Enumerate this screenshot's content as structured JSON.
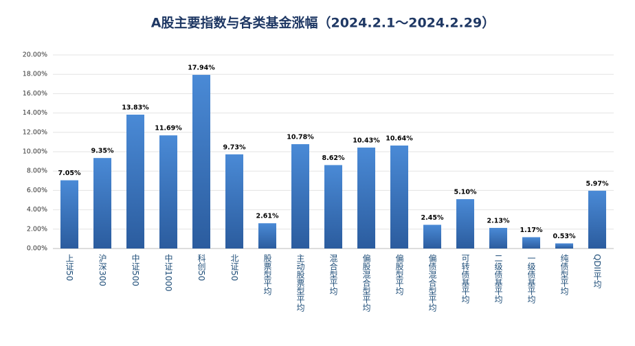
{
  "chart_data": {
    "type": "bar",
    "title": "A股主要指数与各类基金涨幅（2024.2.1～2024.2.29）",
    "categories": [
      "上证50",
      "沪深300",
      "中证500",
      "中证1000",
      "科创50",
      "北证50",
      "股票型平均",
      "主动股票型平均",
      "混合型平均",
      "偏股混合型平均",
      "偏股型平均",
      "偏债混合型平均",
      "可转债基平均",
      "二级债基平均",
      "一级债基平均",
      "纯债型平均",
      "QDII平均"
    ],
    "values": [
      7.05,
      9.35,
      13.83,
      11.69,
      17.94,
      9.73,
      2.61,
      10.78,
      8.62,
      10.43,
      10.64,
      2.45,
      5.1,
      2.13,
      1.17,
      0.53,
      5.97
    ],
    "value_labels": [
      "7.05%",
      "9.35%",
      "13.83%",
      "11.69%",
      "17.94%",
      "9.73%",
      "2.61%",
      "10.78%",
      "8.62%",
      "10.43%",
      "10.64%",
      "2.45%",
      "5.10%",
      "2.13%",
      "1.17%",
      "0.53%",
      "5.97%"
    ],
    "color": "#3a78c8",
    "ylim": [
      0,
      20
    ],
    "yticks": [
      {
        "value": 0,
        "label": "0.00%"
      },
      {
        "value": 2,
        "label": "2.00%"
      },
      {
        "value": 4,
        "label": "4.00%"
      },
      {
        "value": 6,
        "label": "6.00%"
      },
      {
        "value": 8,
        "label": "8.00%"
      },
      {
        "value": 10,
        "label": "10.00%"
      },
      {
        "value": 12,
        "label": "12.00%"
      },
      {
        "value": 14,
        "label": "14.00%"
      },
      {
        "value": 16,
        "label": "16.00%"
      },
      {
        "value": 18,
        "label": "18.00%"
      },
      {
        "value": 20,
        "label": "20.00%"
      }
    ],
    "grid": true
  }
}
